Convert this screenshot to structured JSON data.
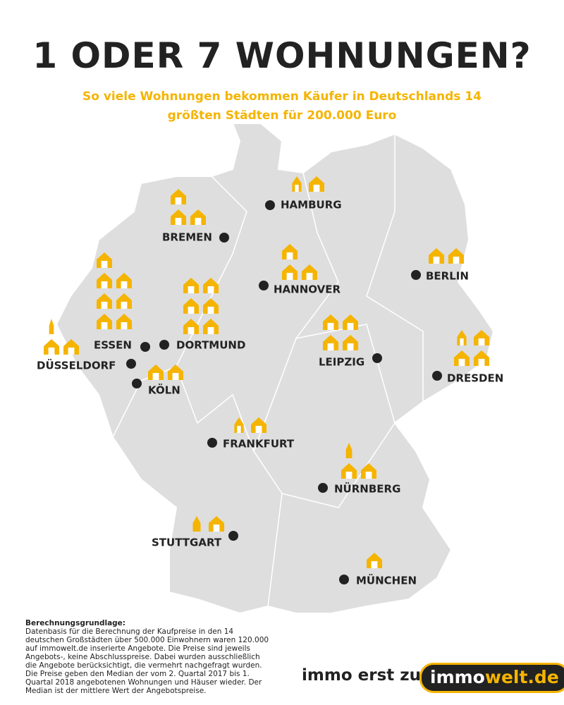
{
  "header": {
    "title": "1 ODER 7 WOHNUNGEN?",
    "subtitle": "So viele Wohnungen bekommen Käufer in Deutschlands 14 größten Städten für 200.000 Euro"
  },
  "cities": [
    {
      "label": "HAMBURG",
      "apartments": 1.6
    },
    {
      "label": "BREMEN",
      "apartments": 3
    },
    {
      "label": "BERLIN",
      "apartments": 2
    },
    {
      "label": "HANNOVER",
      "apartments": 3
    },
    {
      "label": "ESSEN",
      "apartments": 7
    },
    {
      "label": "DORTMUND",
      "apartments": 6
    },
    {
      "label": "DÜSSELDORF",
      "apartments": 2.3
    },
    {
      "label": "KÖLN",
      "apartments": 2
    },
    {
      "label": "LEIPZIG",
      "apartments": 4
    },
    {
      "label": "DRESDEN",
      "apartments": 3.6
    },
    {
      "label": "FRANKFURT",
      "apartments": 1.6
    },
    {
      "label": "NÜRNBERG",
      "apartments": 2.4
    },
    {
      "label": "STUTTGART",
      "apartments": 1.5
    },
    {
      "label": "MÜNCHEN",
      "apartments": 1
    }
  ],
  "footnote": {
    "heading": "Berechnungsgrundlage:",
    "text": "Datenbasis für die Berechnung der Kaufpreise in den 14 deutschen Großstädten über 500.000 Einwohnern waren 120.000 auf immowelt.de inserierte Angebote. Die Preise sind jeweils Angebots-, keine Abschlusspreise. Dabei wurden ausschließlich die Angebote berücksichtigt, die vermehrt nachgefragt wurden. Die Preise geben den Median der vom 2. Quartal 2017 bis 1. Quartal 2018 angebotenen Wohnungen und Häuser wieder. Der Median ist der mittlere Wert der Angebotspreise."
  },
  "brand": {
    "slogan": "immo erst zu",
    "logo_part1": "immo",
    "logo_part2": "welt.de"
  }
}
